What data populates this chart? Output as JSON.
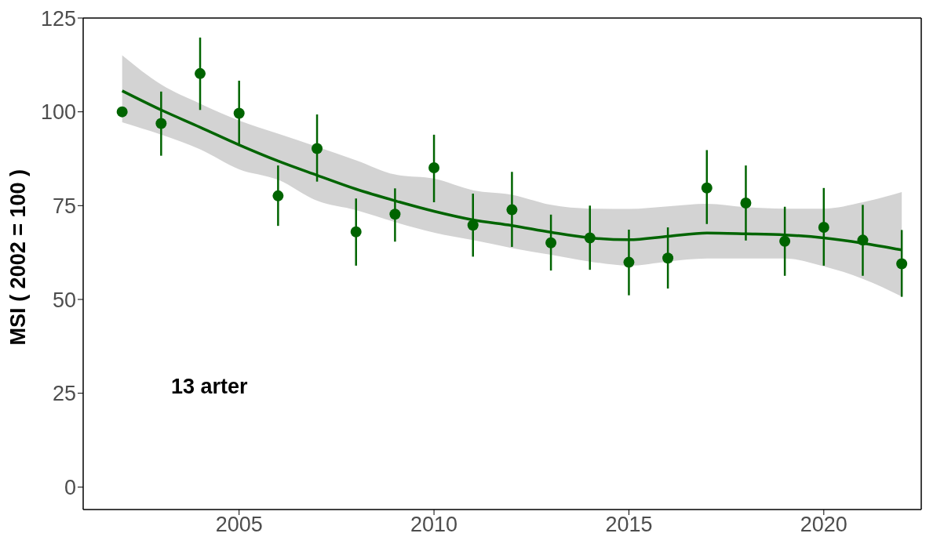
{
  "chart_data": {
    "type": "scatter",
    "ylabel": "MSI ( 2002 = 100 )",
    "annotations": [
      "13 arter"
    ],
    "x": [
      2002,
      2003,
      2004,
      2005,
      2006,
      2007,
      2008,
      2009,
      2010,
      2011,
      2012,
      2013,
      2014,
      2015,
      2016,
      2017,
      2018,
      2019,
      2020,
      2021,
      2022
    ],
    "xlim": [
      2001,
      2022.5
    ],
    "xticks": [
      2005,
      2010,
      2015,
      2020
    ],
    "ylim": [
      -6,
      125
    ],
    "yticks": [
      0,
      25,
      50,
      75,
      100,
      125
    ],
    "grid": false,
    "legend": false,
    "marker": "circle",
    "series": [
      {
        "type": "line",
        "color": "#006400",
        "line_style": "solid",
        "marker": "none",
        "values": [
          105.6,
          100.5,
          95.9,
          91.2,
          86.9,
          83.1,
          79.4,
          76.3,
          73.5,
          71.2,
          69.7,
          67.9,
          66.4,
          65.9,
          66.8,
          67.7,
          67.5,
          67.2,
          66.4,
          65.0,
          63.2
        ],
        "lower": [
          97.2,
          93.9,
          90.0,
          84.7,
          81.9,
          76.3,
          73.8,
          70.6,
          67.8,
          65.8,
          63.7,
          61.9,
          60.1,
          59.0,
          60.1,
          60.9,
          60.9,
          60.9,
          58.8,
          55.5,
          50.8
        ],
        "upper": [
          115.1,
          107.3,
          102.2,
          97.7,
          94.2,
          90.7,
          87.1,
          83.3,
          82.2,
          79.1,
          77.9,
          75.2,
          74.2,
          74.1,
          74.8,
          75.5,
          74.6,
          74.2,
          74.2,
          75.9,
          78.6
        ]
      },
      {
        "color": "#006400",
        "values": [
          100,
          96.9,
          110.2,
          99.6,
          77.6,
          90.2,
          68.0,
          72.7,
          85.1,
          69.8,
          73.9,
          65.1,
          66.4,
          59.9,
          61.0,
          79.7,
          75.7,
          65.5,
          69.2,
          65.8,
          59.5
        ],
        "errors": [
          null,
          [
            88.3,
            105.4
          ],
          [
            100.5,
            119.8
          ],
          [
            91.4,
            108.3
          ],
          [
            69.6,
            85.7
          ],
          [
            81.4,
            99.3
          ],
          [
            59.0,
            76.9
          ],
          [
            65.4,
            79.6
          ],
          [
            75.9,
            93.9
          ],
          [
            61.4,
            78.2
          ],
          [
            64.0,
            84.0
          ],
          [
            57.7,
            72.6
          ],
          [
            57.9,
            75.0
          ],
          [
            51.1,
            68.6
          ],
          [
            52.9,
            69.2
          ],
          [
            70.1,
            89.8
          ],
          [
            65.7,
            85.7
          ],
          [
            56.3,
            74.7
          ],
          [
            59.0,
            79.7
          ],
          [
            56.3,
            75.2
          ],
          [
            50.7,
            68.5
          ]
        ]
      }
    ]
  }
}
